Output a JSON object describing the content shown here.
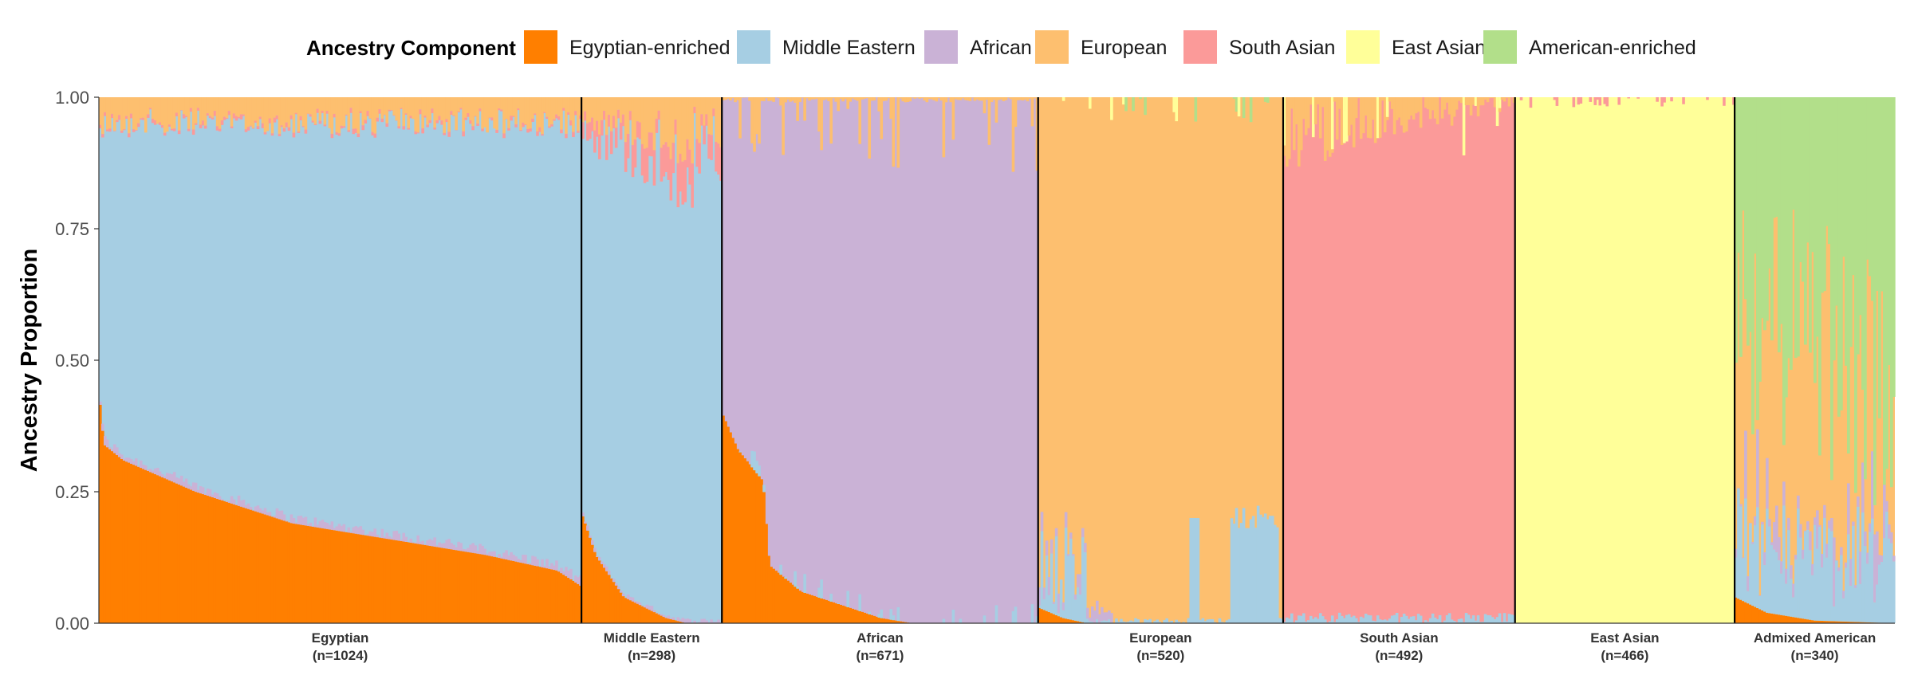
{
  "chart_data": {
    "type": "area",
    "ylabel": "Ancestry Proportion",
    "ylim": [
      0,
      1
    ],
    "yticks": [
      "0.00",
      "0.25",
      "0.50",
      "0.75",
      "1.00"
    ],
    "legend": {
      "title": "Ancestry Component",
      "placement": "top"
    },
    "series": [
      {
        "name": "Egyptian-enriched",
        "color": "#FF7F00"
      },
      {
        "name": "Middle Eastern",
        "color": "#A6CEE3"
      },
      {
        "name": "African",
        "color": "#CAB2D6"
      },
      {
        "name": "European",
        "color": "#FDBF6F"
      },
      {
        "name": "South Asian",
        "color": "#FB9A99"
      },
      {
        "name": "East Asian",
        "color": "#FFFF99"
      },
      {
        "name": "American-enriched",
        "color": "#B2DF8A"
      }
    ],
    "groups": [
      {
        "label": "Egyptian",
        "n_label": "(n=1024)",
        "n": 1024,
        "dominant": "Middle Eastern",
        "egyptian_profile": [
          [
            0,
            0.44
          ],
          [
            0.01,
            0.34
          ],
          [
            0.05,
            0.31
          ],
          [
            0.2,
            0.25
          ],
          [
            0.4,
            0.19
          ],
          [
            0.6,
            0.16
          ],
          [
            0.8,
            0.13
          ],
          [
            0.95,
            0.1
          ],
          [
            1,
            0.07
          ]
        ],
        "top_fringe": 0.08
      },
      {
        "label": "Middle Eastern",
        "n_label": "(n=298)",
        "n": 298,
        "dominant": "Middle Eastern",
        "egyptian_profile": [
          [
            0,
            0.21
          ],
          [
            0.1,
            0.13
          ],
          [
            0.3,
            0.05
          ],
          [
            0.6,
            0.01
          ],
          [
            0.75,
            0
          ],
          [
            1,
            0
          ]
        ],
        "top_fringe": 0.2
      },
      {
        "label": "African",
        "n_label": "(n=671)",
        "n": 671,
        "dominant": "African",
        "egyptian_profile": [
          [
            0,
            0.4
          ],
          [
            0.05,
            0.33
          ],
          [
            0.13,
            0.27
          ],
          [
            0.15,
            0.11
          ],
          [
            0.25,
            0.06
          ],
          [
            0.5,
            0.01
          ],
          [
            0.6,
            0
          ],
          [
            1,
            0
          ]
        ],
        "top_fringe": 0.1
      },
      {
        "label": "European",
        "n_label": "(n=520)",
        "n": 520,
        "dominant": "European",
        "egyptian_profile": [
          [
            0,
            0.03
          ],
          [
            0.1,
            0.01
          ],
          [
            0.2,
            0
          ],
          [
            1,
            0
          ]
        ],
        "top_fringe": 0.06
      },
      {
        "label": "South Asian",
        "n_label": "(n=492)",
        "n": 492,
        "dominant": "South Asian",
        "egyptian_profile": [
          [
            0,
            0
          ],
          [
            1,
            0
          ]
        ],
        "top_fringe": 0.08
      },
      {
        "label": "East Asian",
        "n_label": "(n=466)",
        "n": 466,
        "dominant": "East Asian",
        "egyptian_profile": [
          [
            0,
            0
          ],
          [
            1,
            0
          ]
        ],
        "top_fringe": 0.0
      },
      {
        "label": "Admixed American",
        "n_label": "(n=340)",
        "n": 340,
        "dominant": "European",
        "egyptian_profile": [
          [
            0,
            0.05
          ],
          [
            0.2,
            0.02
          ],
          [
            0.5,
            0.005
          ],
          [
            1,
            0
          ]
        ],
        "top_fringe": 0.0
      }
    ]
  }
}
